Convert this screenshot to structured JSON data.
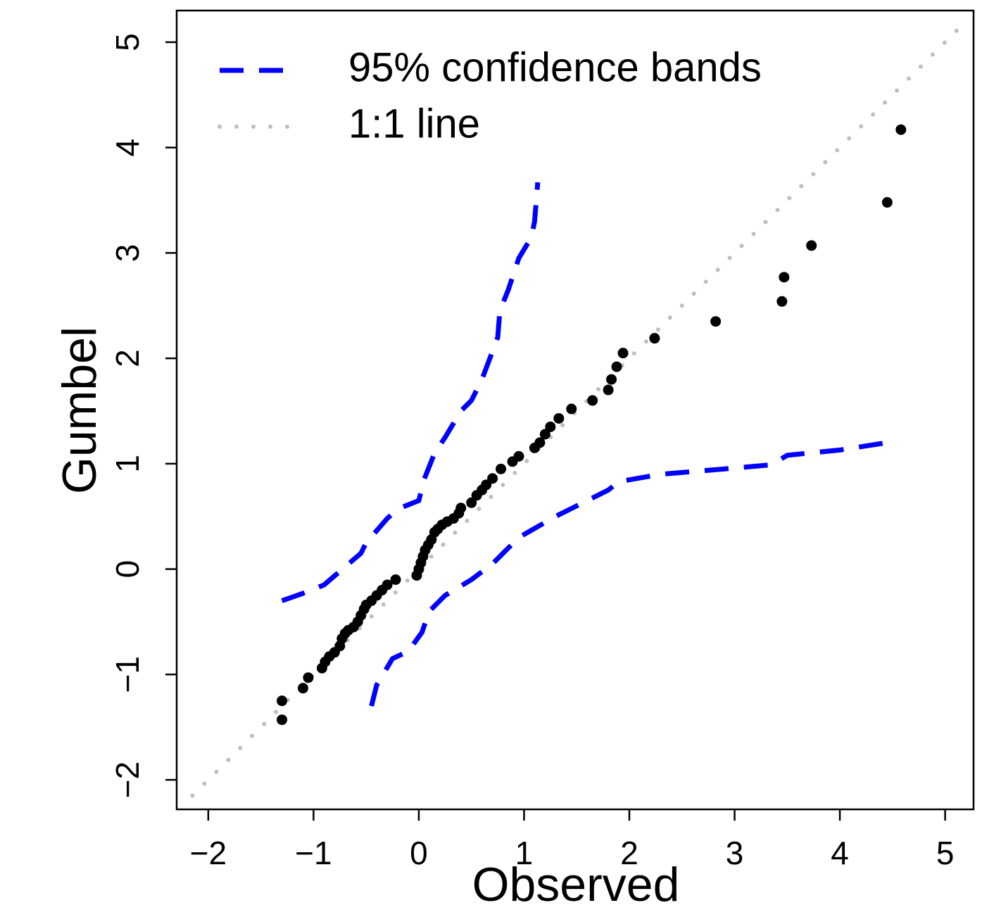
{
  "chart_data": {
    "type": "scatter",
    "x_label": "Observed",
    "y_label": "Gumbel",
    "xlim": [
      -2.3,
      5.27
    ],
    "ylim": [
      -2.28,
      5.3
    ],
    "xticks": [
      {
        "value": -2,
        "label": "−2"
      },
      {
        "value": -1,
        "label": "−1"
      },
      0,
      1,
      2,
      3,
      4,
      5
    ],
    "yticks": [
      {
        "value": -2,
        "label": "−2"
      },
      {
        "value": -1,
        "label": "−1"
      },
      0,
      1,
      2,
      3,
      4,
      5
    ],
    "legend": "top-left",
    "points": {
      "color": "#000000",
      "x": [
        -1.3,
        -1.3,
        -1.1,
        -1.05,
        -0.92,
        -0.89,
        -0.85,
        -0.8,
        -0.75,
        -0.73,
        -0.7,
        -0.67,
        -0.62,
        -0.58,
        -0.55,
        -0.52,
        -0.5,
        -0.45,
        -0.4,
        -0.35,
        -0.3,
        -0.22,
        -0.02,
        0,
        0.02,
        0.04,
        0.06,
        0.09,
        0.12,
        0.15,
        0.18,
        0.22,
        0.27,
        0.33,
        0.38,
        0.4,
        0.5,
        0.55,
        0.6,
        0.64,
        0.7,
        0.78,
        0.89,
        0.95,
        1.1,
        1.15,
        1.2,
        1.25,
        1.33,
        1.45,
        1.65,
        1.8,
        1.83,
        1.88,
        1.94,
        2.24,
        2.82,
        3.45,
        3.47,
        3.73,
        4.45,
        4.58
      ],
      "y": [
        -1.43,
        -1.25,
        -1.13,
        -1.03,
        -0.94,
        -0.88,
        -0.83,
        -0.79,
        -0.73,
        -0.66,
        -0.61,
        -0.58,
        -0.55,
        -0.5,
        -0.44,
        -0.38,
        -0.34,
        -0.3,
        -0.25,
        -0.2,
        -0.15,
        -0.1,
        -0.06,
        0,
        0.06,
        0.12,
        0.18,
        0.23,
        0.28,
        0.35,
        0.38,
        0.42,
        0.45,
        0.48,
        0.53,
        0.58,
        0.63,
        0.7,
        0.75,
        0.8,
        0.86,
        0.95,
        1.02,
        1.07,
        1.15,
        1.2,
        1.28,
        1.35,
        1.43,
        1.52,
        1.6,
        1.7,
        1.8,
        1.92,
        2.05,
        2.19,
        2.35,
        2.54,
        2.77,
        3.07,
        3.48,
        4.17
      ]
    },
    "series": [
      {
        "name": "95% confidence bands",
        "color": "#0000ff",
        "upper": {
          "x": [
            -1.3,
            -1.1,
            -0.9,
            -0.55,
            -0.5,
            -0.3,
            -0.2,
            0.0,
            0.05,
            0.15,
            0.25,
            0.4,
            0.5,
            0.6,
            0.75,
            0.77,
            0.85,
            0.95,
            1.07,
            1.1,
            1.13
          ],
          "y": [
            -0.3,
            -0.23,
            -0.15,
            0.15,
            0.25,
            0.48,
            0.57,
            0.65,
            0.85,
            1.1,
            1.25,
            1.5,
            1.6,
            1.8,
            2.2,
            2.45,
            2.65,
            2.95,
            3.15,
            3.3,
            3.67
          ]
        },
        "lower": {
          "x": [
            -0.45,
            -0.4,
            -0.25,
            -0.1,
            0.03,
            0.1,
            0.25,
            0.5,
            0.7,
            0.95,
            1.3,
            1.6,
            1.8,
            1.9,
            2.3,
            2.9,
            3.35,
            3.5,
            4.0,
            4.45
          ],
          "y": [
            -1.3,
            -1.1,
            -0.85,
            -0.78,
            -0.6,
            -0.4,
            -0.25,
            -0.1,
            0.05,
            0.3,
            0.5,
            0.65,
            0.75,
            0.83,
            0.9,
            0.95,
            0.99,
            1.08,
            1.13,
            1.2
          ]
        }
      },
      {
        "name": "1:1 line",
        "color": "#bebebe",
        "x": [
          -2.15,
          5.2
        ],
        "y": [
          -2.15,
          5.2
        ]
      }
    ]
  }
}
